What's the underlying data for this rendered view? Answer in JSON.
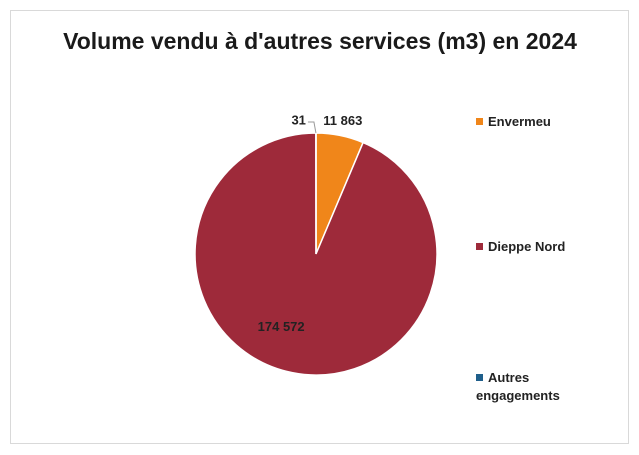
{
  "chart_data": {
    "type": "pie",
    "title": "Volume vendu à d'autres services (m3) en 2024",
    "categories": [
      "Envermeu",
      "Dieppe Nord",
      "Autres engagements"
    ],
    "values": [
      11863,
      174572,
      31
    ],
    "value_labels": [
      "11 863",
      "174 572",
      "31"
    ],
    "colors": [
      "#f0861a",
      "#9e2a3a",
      "#1f5f8b"
    ],
    "legend": "right"
  }
}
